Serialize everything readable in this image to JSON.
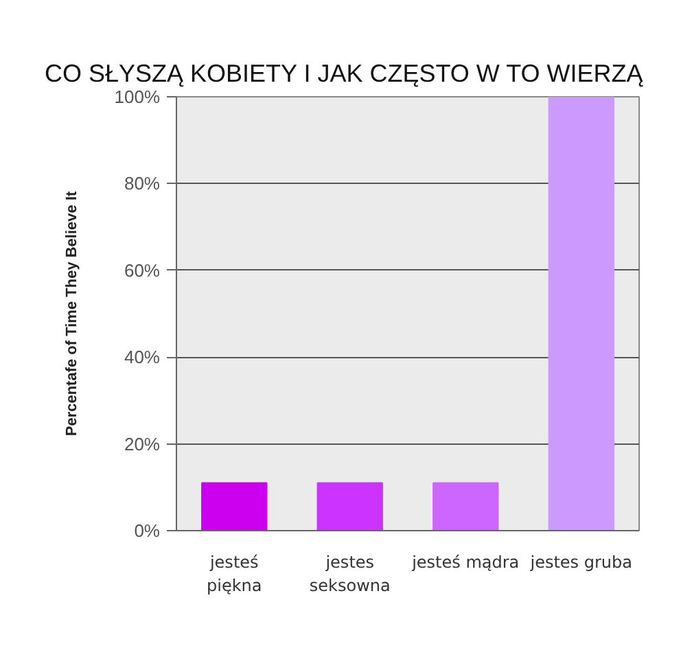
{
  "chart_data": {
    "type": "bar",
    "title": "CO SŁYSZĄ KOBIETY I JAK CZĘSTO W TO WIERZĄ",
    "ylabel": "Percentafe of Time They Believe It",
    "categories": [
      "jesteś piękna",
      "jestes seksowna",
      "jesteś mądra",
      "jestes gruba"
    ],
    "values": [
      11,
      11,
      11,
      100
    ],
    "colors": [
      "#cc00ee",
      "#cc33ff",
      "#cc66ff",
      "#cc99ff"
    ],
    "ylim": [
      0,
      100
    ],
    "yticks": [
      {
        "value": 0,
        "label": "0%"
      },
      {
        "value": 20,
        "label": "20%"
      },
      {
        "value": 40,
        "label": "40%"
      },
      {
        "value": 60,
        "label": "60%"
      },
      {
        "value": 80,
        "label": "80%"
      },
      {
        "value": 100,
        "label": "100%"
      }
    ],
    "grid": "y"
  }
}
